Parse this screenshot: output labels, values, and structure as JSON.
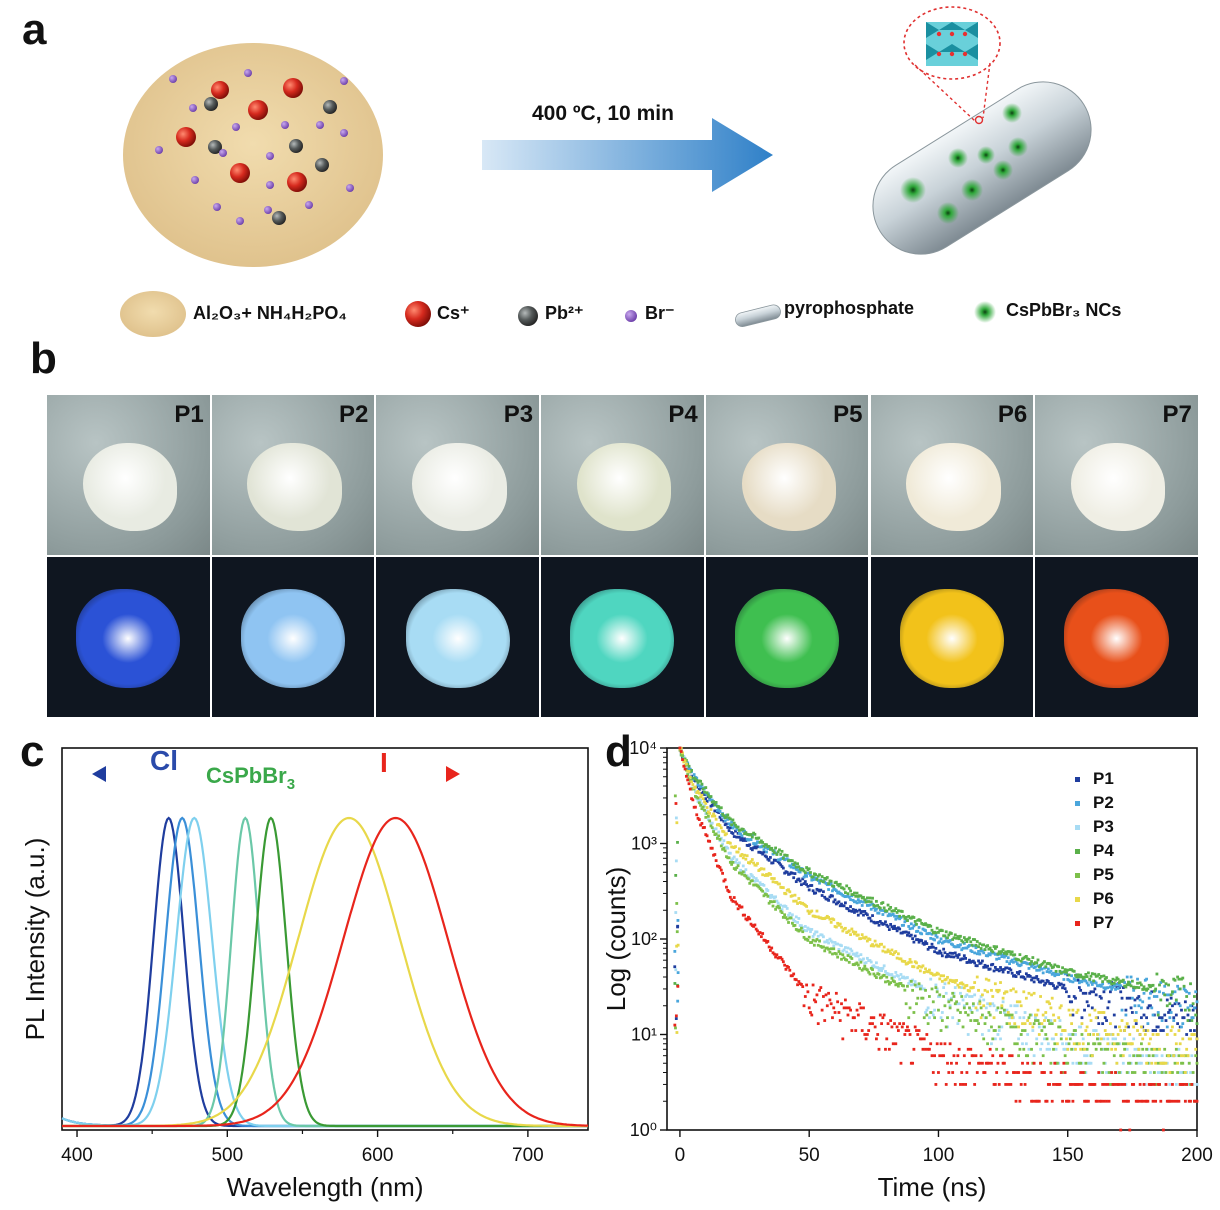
{
  "panel_a": {
    "letter": "a",
    "condition": "400 ºC, 10 min",
    "legend": {
      "matrix": "Al₂O₃+ NH₄H₂PO₄",
      "cs": "Cs⁺",
      "pb": "Pb²⁺",
      "br": "Br⁻",
      "pyro": "pyrophosphate",
      "ncs": "CsPbBr₃ NCs"
    },
    "colors": {
      "matrix": "#e8cf9c",
      "cs": "#d62a1e",
      "pb": "#555a5a",
      "br": "#8a5cc0",
      "ncs": "#2fa83a",
      "arrow": "#2f80c8"
    }
  },
  "panel_b": {
    "letter": "b",
    "samples": [
      {
        "label": "P1",
        "powder": "#e8ebe2",
        "glow": "#2b52d6"
      },
      {
        "label": "P2",
        "powder": "#e1e4d6",
        "glow": "#8fc4f2"
      },
      {
        "label": "P3",
        "powder": "#eaece4",
        "glow": "#a8dcf4"
      },
      {
        "label": "P4",
        "powder": "#dfe3cb",
        "glow": "#4fd6c0"
      },
      {
        "label": "P5",
        "powder": "#e6dcc5",
        "glow": "#3fbf50"
      },
      {
        "label": "P6",
        "powder": "#f0ead8",
        "glow": "#f2c21a"
      },
      {
        "label": "P7",
        "powder": "#efeee4",
        "glow": "#e8501a"
      }
    ]
  },
  "panel_c": {
    "letter": "c",
    "left_annotation": "Cl",
    "center_annotation": "CsPbBr",
    "center_annotation_sub": "3",
    "right_annotation": "I"
  },
  "panel_d": {
    "letter": "d"
  },
  "chart_data": [
    {
      "type": "line",
      "xlabel": "Wavelength (nm)",
      "ylabel": "PL Intensity (a.u.)",
      "xlim": [
        390,
        740
      ],
      "xticks": [
        400,
        500,
        600,
        700
      ],
      "series": [
        {
          "color": "#1f3d9e",
          "peak_nm": 461,
          "fwhm_nm": 24,
          "values_note": "normalized"
        },
        {
          "color": "#3a8fd8",
          "peak_nm": 470,
          "fwhm_nm": 26
        },
        {
          "color": "#7fd0ee",
          "peak_nm": 478,
          "fwhm_nm": 28
        },
        {
          "color": "#6bc8a8",
          "peak_nm": 512,
          "fwhm_nm": 22
        },
        {
          "color": "#3a9a34",
          "peak_nm": 529,
          "fwhm_nm": 24
        },
        {
          "color": "#e8d84a",
          "peak_nm": 581,
          "fwhm_nm": 80
        },
        {
          "color": "#e8251c",
          "peak_nm": 612,
          "fwhm_nm": 82
        }
      ]
    },
    {
      "type": "scatter",
      "xlabel": "Time (ns)",
      "ylabel": "Log (counts)",
      "xlim": [
        -5,
        200
      ],
      "ylim": [
        1,
        10000
      ],
      "yscale": "log",
      "xticks": [
        0,
        50,
        100,
        150,
        200
      ],
      "yticks": [
        "10⁰",
        "10¹",
        "10²",
        "10³",
        "10⁴"
      ],
      "legend_position": "top-right",
      "series": [
        {
          "name": "P1",
          "color": "#1f3d9e",
          "value_at_50ns": 350,
          "value_at_100ns": 75,
          "value_at_150ns": 30,
          "value_at_200ns": 15
        },
        {
          "name": "P2",
          "color": "#4aa6dc",
          "value_at_50ns": 450,
          "value_at_100ns": 100,
          "value_at_150ns": 40,
          "value_at_200ns": 20
        },
        {
          "name": "P3",
          "color": "#a8dcf4",
          "value_at_50ns": 120,
          "value_at_100ns": 25,
          "value_at_150ns": 9,
          "value_at_200ns": 4
        },
        {
          "name": "P4",
          "color": "#5ab04a",
          "value_at_50ns": 500,
          "value_at_100ns": 120,
          "value_at_150ns": 45,
          "value_at_200ns": 25
        },
        {
          "name": "P5",
          "color": "#7dc04a",
          "value_at_50ns": 100,
          "value_at_100ns": 20,
          "value_at_150ns": 8,
          "value_at_200ns": 4
        },
        {
          "name": "P6",
          "color": "#e8d84a",
          "value_at_50ns": 200,
          "value_at_100ns": 40,
          "value_at_150ns": 14,
          "value_at_200ns": 7
        },
        {
          "name": "P7",
          "color": "#e8251c",
          "value_at_50ns": 25,
          "value_at_100ns": 6,
          "value_at_150ns": 3,
          "value_at_200ns": 2
        }
      ]
    }
  ]
}
